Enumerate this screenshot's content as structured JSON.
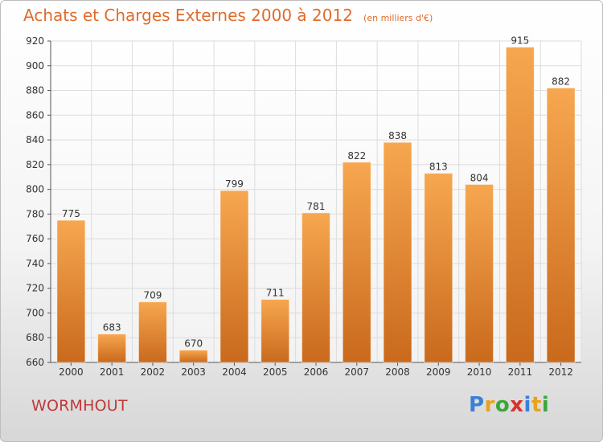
{
  "header": {
    "title": "Achats et Charges Externes 2000 à 2012",
    "unit": "(en milliers d'€)"
  },
  "footer": {
    "place": "WORMHOUT",
    "brand_letters": [
      "P",
      "r",
      "o",
      "x",
      "i",
      "t",
      "i"
    ],
    "brand_colors": [
      "#3a7fd8",
      "#e8a21c",
      "#3aa83a",
      "#d8322e",
      "#3a7fd8",
      "#e8a21c",
      "#3aa83a"
    ]
  },
  "chart_data": {
    "type": "bar",
    "title": "Achats et Charges Externes 2000 à 2012",
    "subtitle": "(en milliers d'€)",
    "xlabel": "",
    "ylabel": "",
    "categories": [
      "2000",
      "2001",
      "2002",
      "2003",
      "2004",
      "2005",
      "2006",
      "2007",
      "2008",
      "2009",
      "2010",
      "2011",
      "2012"
    ],
    "values": [
      775,
      683,
      709,
      670,
      799,
      711,
      781,
      822,
      838,
      813,
      804,
      915,
      882
    ],
    "ylim": [
      660,
      920
    ],
    "yticks": [
      660,
      680,
      700,
      720,
      740,
      760,
      780,
      800,
      820,
      840,
      860,
      880,
      900,
      920
    ],
    "grid": true,
    "bar_color_top": "#f7a750",
    "bar_color_bottom": "#c9691c",
    "grid_color": "#dcdcdc"
  }
}
